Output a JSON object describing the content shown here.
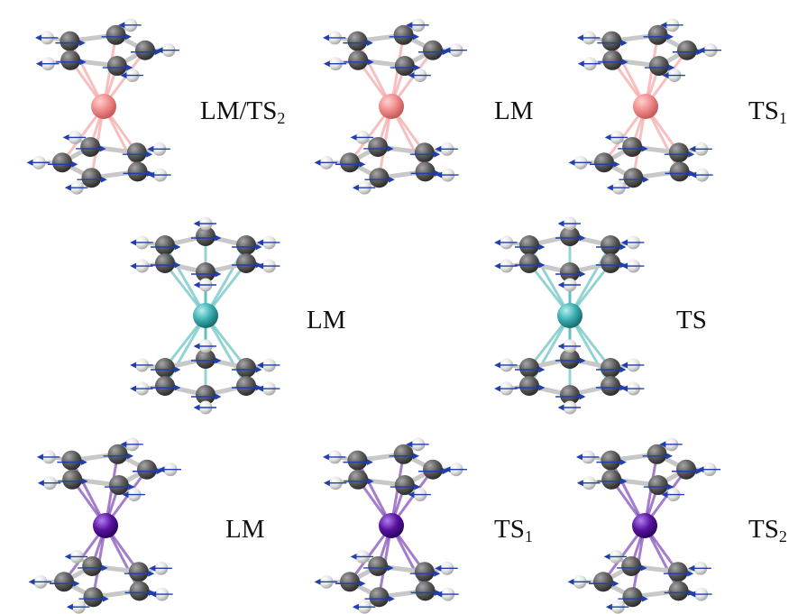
{
  "colors": {
    "carbon": "#5c5c5c",
    "hydrogen": "#e6e6e6",
    "bond": "#c8c8c8",
    "arrow": "#1f3fb0",
    "metal_pink": "#f08a8a",
    "metal_teal": "#3aaeb0",
    "metal_purple": "#5a12a0"
  },
  "rows": [
    {
      "molecules": [
        {
          "metal_color": "metal_pink",
          "ring": 5,
          "label_main": "LM/TS",
          "label_sub": "2"
        },
        {
          "metal_color": "metal_pink",
          "ring": 5,
          "label_main": "LM",
          "label_sub": ""
        },
        {
          "metal_color": "metal_pink",
          "ring": 5,
          "label_main": "TS",
          "label_sub": "1"
        }
      ]
    },
    {
      "molecules": [
        {
          "metal_color": "metal_teal",
          "ring": 6,
          "label_main": "LM",
          "label_sub": ""
        },
        {
          "metal_color": "metal_teal",
          "ring": 6,
          "label_main": "TS",
          "label_sub": ""
        }
      ]
    },
    {
      "molecules": [
        {
          "metal_color": "metal_purple",
          "ring": 5,
          "label_main": "LM",
          "label_sub": ""
        },
        {
          "metal_color": "metal_purple",
          "ring": 5,
          "label_main": "TS",
          "label_sub": "1"
        },
        {
          "metal_color": "metal_purple",
          "ring": 5,
          "label_main": "TS",
          "label_sub": "2"
        }
      ]
    }
  ]
}
